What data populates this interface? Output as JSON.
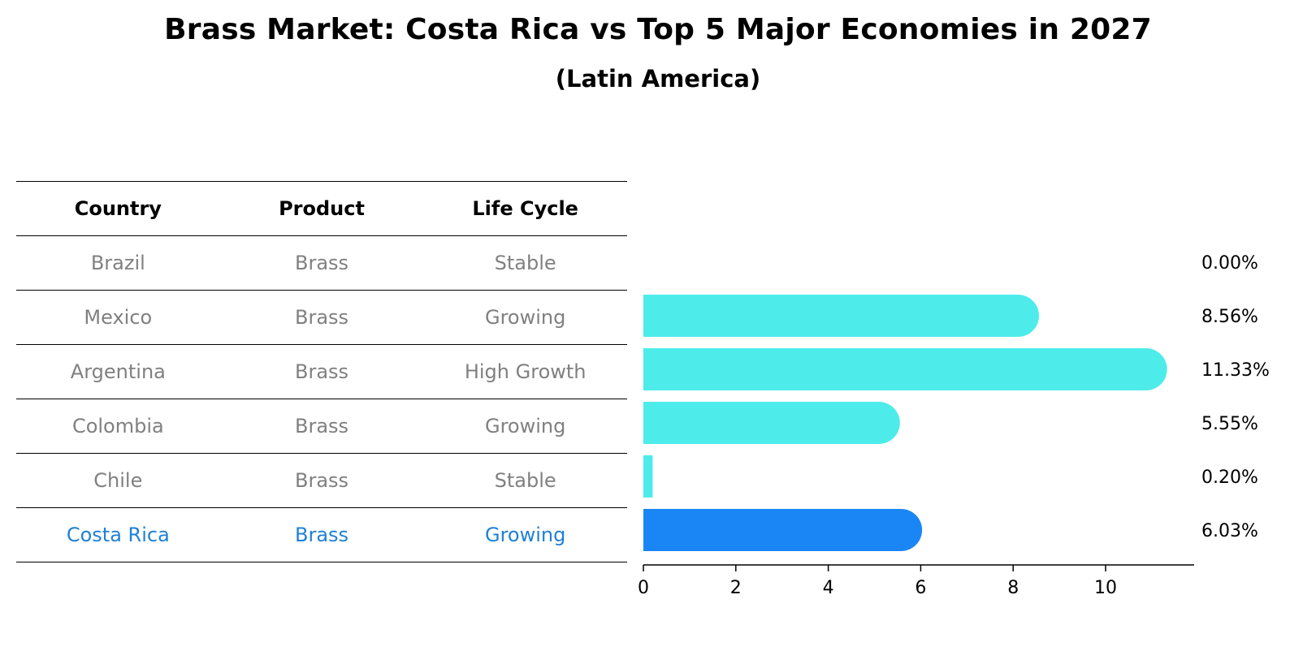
{
  "title": "Brass Market: Costa Rica vs Top 5 Major Economies in 2027",
  "subtitle": "(Latin America)",
  "table": {
    "headers": [
      "Country",
      "Product",
      "Life Cycle"
    ],
    "rows": [
      {
        "country": "Brazil",
        "product": "Brass",
        "life_cycle": "Stable"
      },
      {
        "country": "Mexico",
        "product": "Brass",
        "life_cycle": "Growing"
      },
      {
        "country": "Argentina",
        "product": "Brass",
        "life_cycle": "High Growth"
      },
      {
        "country": "Colombia",
        "product": "Brass",
        "life_cycle": "Growing"
      },
      {
        "country": "Chile",
        "product": "Brass",
        "life_cycle": "Stable"
      },
      {
        "country": "Costa Rica",
        "product": "Brass",
        "life_cycle": "Growing"
      }
    ],
    "highlight_country": "Costa Rica"
  },
  "chart_data": {
    "type": "bar",
    "orientation": "horizontal",
    "categories": [
      "Brazil",
      "Mexico",
      "Argentina",
      "Colombia",
      "Chile",
      "Costa Rica"
    ],
    "values": [
      0.0,
      8.56,
      11.33,
      5.55,
      0.2,
      6.03
    ],
    "value_labels": [
      "0.00%",
      "8.56%",
      "11.33%",
      "5.55%",
      "0.20%",
      "6.03%"
    ],
    "xticks": [
      0,
      2,
      4,
      6,
      8,
      10
    ],
    "xlim": [
      0,
      11.9
    ],
    "colors": {
      "default": "#4deceb",
      "highlight": "#1a86f5"
    },
    "highlight_category": "Costa Rica",
    "grid": false
  }
}
